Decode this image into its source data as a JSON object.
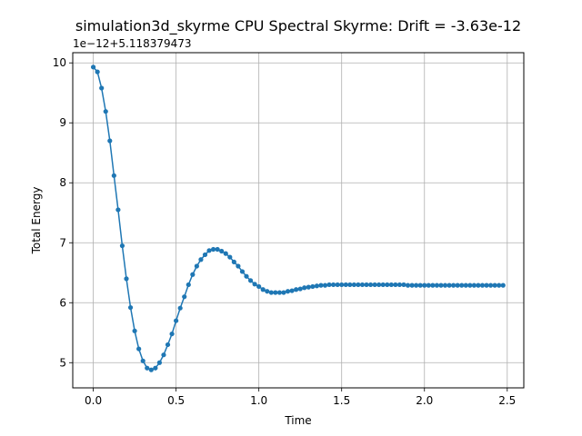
{
  "chart_data": {
    "type": "line",
    "title": "simulation3d_skyrme CPU Spectral Skyrme: Drift = -3.63e-12",
    "xlabel": "Time",
    "ylabel": "Total Energy",
    "y_offset_label": "1e−12+5.118379473",
    "xlim": [
      -0.124,
      2.6
    ],
    "ylim": [
      4.58,
      10.17
    ],
    "xticks": [
      0.0,
      0.5,
      1.0,
      1.5,
      2.0,
      2.5
    ],
    "xtick_labels": [
      "0.0",
      "0.5",
      "1.0",
      "1.5",
      "2.0",
      "2.5"
    ],
    "yticks": [
      5,
      6,
      7,
      8,
      9,
      10
    ],
    "ytick_labels": [
      "5",
      "6",
      "7",
      "8",
      "9",
      "10"
    ],
    "grid": true,
    "color": "#1f77b4",
    "series": [
      {
        "x": [
          0.0,
          0.025,
          0.05,
          0.075,
          0.1,
          0.125,
          0.15,
          0.175,
          0.2,
          0.225,
          0.25,
          0.275,
          0.3,
          0.325,
          0.35,
          0.375,
          0.4,
          0.425,
          0.45,
          0.475,
          0.5,
          0.525,
          0.55,
          0.575,
          0.6,
          0.625,
          0.65,
          0.675,
          0.7,
          0.725,
          0.75,
          0.775,
          0.8,
          0.825,
          0.85,
          0.875,
          0.9,
          0.925,
          0.95,
          0.975,
          1.0,
          1.025,
          1.05,
          1.075,
          1.1,
          1.125,
          1.15,
          1.175,
          1.2,
          1.225,
          1.25,
          1.275,
          1.3,
          1.325,
          1.35,
          1.375,
          1.4,
          1.425,
          1.45,
          1.475,
          1.5,
          1.525,
          1.55,
          1.575,
          1.6,
          1.625,
          1.65,
          1.675,
          1.7,
          1.725,
          1.75,
          1.775,
          1.8,
          1.825,
          1.85,
          1.875,
          1.9,
          1.925,
          1.95,
          1.975,
          2.0,
          2.025,
          2.05,
          2.075,
          2.1,
          2.125,
          2.15,
          2.175,
          2.2,
          2.225,
          2.25,
          2.275,
          2.3,
          2.325,
          2.35,
          2.375,
          2.4,
          2.425,
          2.45,
          2.475
        ],
        "y": [
          9.93,
          9.85,
          9.58,
          9.19,
          8.7,
          8.12,
          7.55,
          6.95,
          6.4,
          5.92,
          5.53,
          5.23,
          5.03,
          4.91,
          4.88,
          4.91,
          5.0,
          5.13,
          5.3,
          5.48,
          5.7,
          5.91,
          6.1,
          6.3,
          6.47,
          6.61,
          6.72,
          6.8,
          6.87,
          6.89,
          6.89,
          6.86,
          6.82,
          6.76,
          6.68,
          6.61,
          6.52,
          6.44,
          6.37,
          6.31,
          6.27,
          6.22,
          6.19,
          6.17,
          6.17,
          6.17,
          6.17,
          6.19,
          6.2,
          6.22,
          6.23,
          6.25,
          6.26,
          6.27,
          6.28,
          6.29,
          6.29,
          6.3,
          6.3,
          6.3,
          6.3,
          6.3,
          6.3,
          6.3,
          6.3,
          6.3,
          6.3,
          6.3,
          6.3,
          6.3,
          6.3,
          6.3,
          6.3,
          6.3,
          6.3,
          6.3,
          6.29,
          6.29,
          6.29,
          6.29,
          6.29,
          6.29,
          6.29,
          6.29,
          6.29,
          6.29,
          6.29,
          6.29,
          6.29,
          6.29,
          6.29,
          6.29,
          6.29,
          6.29,
          6.29,
          6.29,
          6.29,
          6.29,
          6.29,
          6.29
        ]
      }
    ]
  }
}
